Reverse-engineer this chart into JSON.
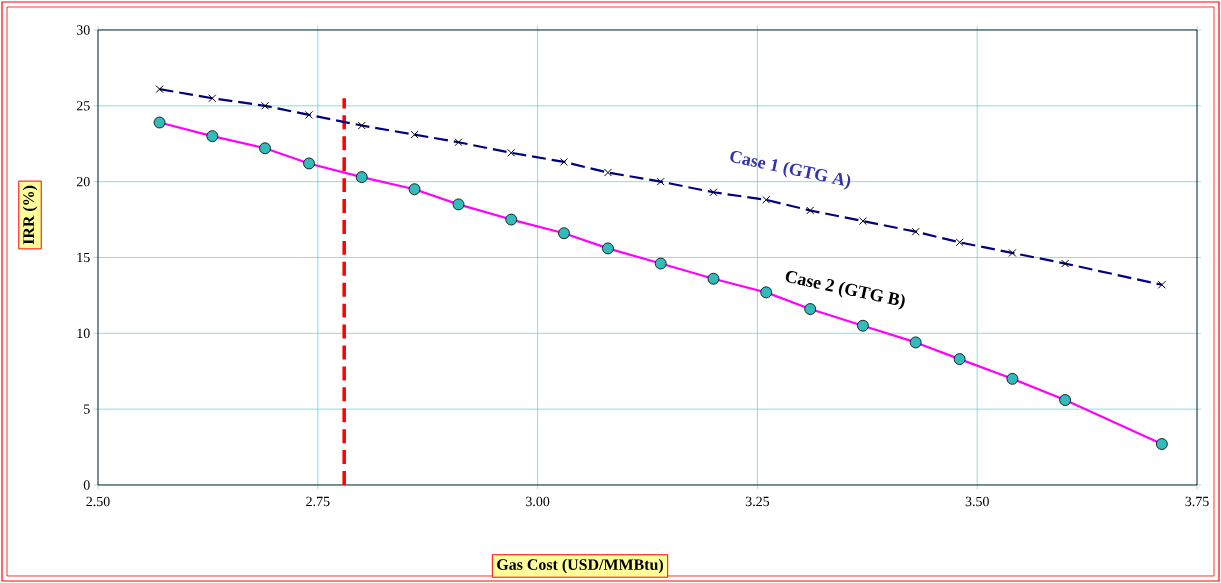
{
  "chart_data": {
    "type": "line",
    "xlabel": "Gas Cost (USD/MMBtu)",
    "ylabel": "IRR (%)",
    "x": [
      2.57,
      2.63,
      2.69,
      2.74,
      2.8,
      2.86,
      2.91,
      2.97,
      3.03,
      3.08,
      3.14,
      3.2,
      3.26,
      3.31,
      3.37,
      3.43,
      3.48,
      3.54,
      3.6,
      3.71
    ],
    "series": [
      {
        "color": "#000080",
        "marker": "cross",
        "line_style": "dashed",
        "values": [
          26.1,
          25.5,
          25.0,
          24.4,
          23.7,
          23.1,
          22.6,
          21.9,
          21.3,
          20.6,
          20.0,
          19.3,
          18.8,
          18.1,
          17.4,
          16.7,
          16.0,
          15.3,
          14.6,
          13.2
        ]
      },
      {
        "color": "#ff00ff",
        "marker": "circle",
        "line_style": "solid",
        "values": [
          23.9,
          23.0,
          22.2,
          21.2,
          20.3,
          19.5,
          18.5,
          17.5,
          16.6,
          15.6,
          14.6,
          13.6,
          12.7,
          11.6,
          10.5,
          9.4,
          8.3,
          7.0,
          5.6,
          2.7
        ]
      }
    ],
    "annotations": [
      "Case 1 (GTG A)",
      "Case 2 (GTG B)"
    ],
    "ref_lines": [
      {
        "axis": "x",
        "value": 2.78,
        "color": "#ff0000",
        "line_style": "dashed"
      }
    ],
    "xlim": [
      2.5,
      3.75
    ],
    "ylim": [
      0,
      30
    ],
    "xticks": [
      {
        "value": 2.5,
        "label": "2.50"
      },
      {
        "value": 2.75,
        "label": "2.75"
      },
      {
        "value": 3.0,
        "label": "3.00"
      },
      {
        "value": 3.25,
        "label": "3.25"
      },
      {
        "value": 3.5,
        "label": "3.50"
      },
      {
        "value": 3.75,
        "label": "3.75"
      }
    ],
    "yticks": [
      0,
      5,
      10,
      15,
      20,
      25,
      30
    ],
    "grid": true
  }
}
